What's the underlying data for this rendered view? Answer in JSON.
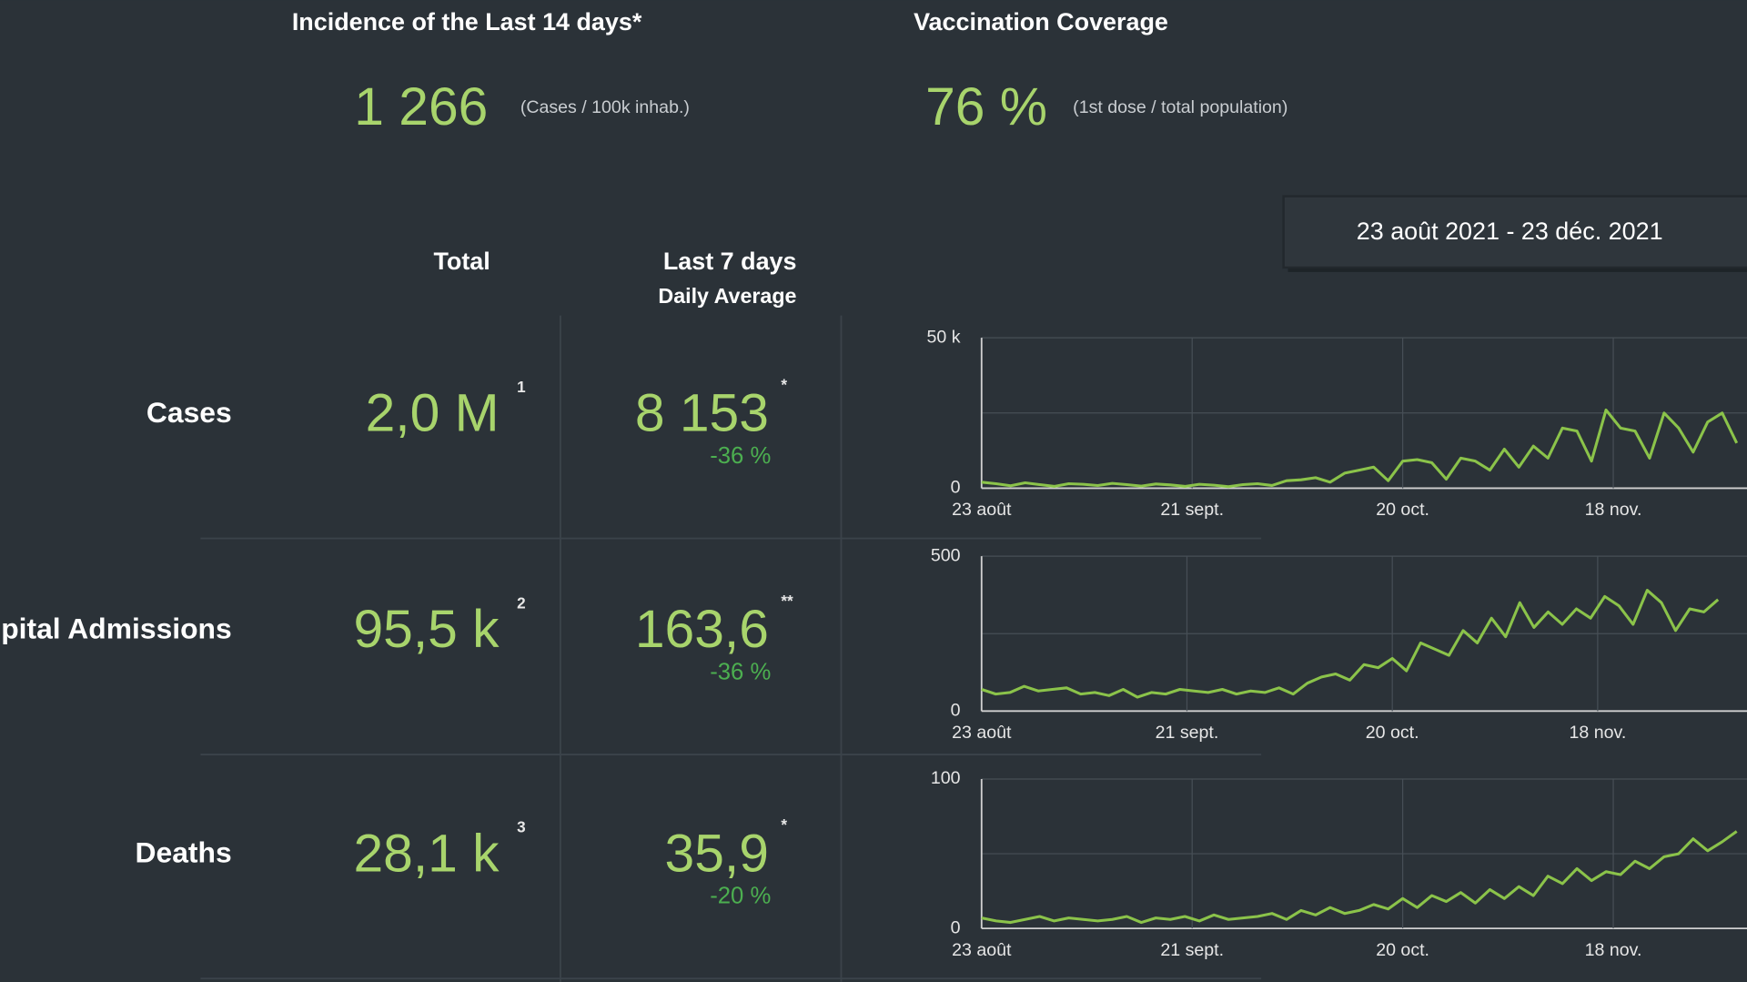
{
  "header": {
    "incidence_title": "Incidence of the Last 14 days*",
    "incidence_value": "1 266",
    "incidence_unit": "(Cases / 100k inhab.)",
    "vaccination_title": "Vaccination Coverage",
    "vaccination_value": "76 %",
    "vaccination_unit": "(1st dose / total population)"
  },
  "date_range": "23 août 2021 - 23 déc. 2021",
  "table": {
    "columns": [
      "Total",
      "Last 7 days",
      "Daily Average"
    ],
    "rows": [
      {
        "label": "Cases",
        "total": "2,0 M",
        "total_note": "1",
        "average": "8 153",
        "average_note": "*",
        "change": "-36 %"
      },
      {
        "label": "Hospital Admissions",
        "total": "95,5 k",
        "total_note": "2",
        "average": "163,6",
        "average_note": "**",
        "change": "-36 %"
      },
      {
        "label": "Deaths",
        "total": "28,1 k",
        "total_note": "3",
        "average": "35,9",
        "average_note": "*",
        "change": "-20 %"
      }
    ]
  },
  "chart_data": [
    {
      "type": "line",
      "color": "#8bc34a",
      "x": [
        0,
        2,
        4,
        6,
        8,
        10,
        12,
        14,
        16,
        18,
        20,
        22,
        24,
        26,
        28,
        30,
        32,
        34,
        36,
        38,
        40,
        42,
        44,
        46,
        48,
        50,
        52,
        54,
        56,
        58,
        60,
        62,
        64,
        66,
        68,
        70,
        72,
        74,
        76,
        78,
        80,
        82,
        84,
        86,
        88,
        90,
        92,
        94,
        96,
        98,
        100,
        102,
        104
      ],
      "values": [
        2000,
        1500,
        800,
        1800,
        1200,
        600,
        1500,
        1300,
        900,
        1600,
        1200,
        700,
        1400,
        1100,
        600,
        1300,
        1000,
        500,
        1200,
        1500,
        900,
        2500,
        2800,
        3500,
        2000,
        5000,
        6000,
        7000,
        2500,
        9000,
        9500,
        8500,
        3000,
        10000,
        9000,
        6000,
        13000,
        7000,
        14000,
        10000,
        20000,
        19000,
        9000,
        26000,
        20000,
        19000,
        10000,
        25000,
        20000,
        12000,
        22000,
        25000,
        15000
      ],
      "xlim": [
        0,
        122
      ],
      "xticks": [
        {
          "value": 0,
          "label": "23 août"
        },
        {
          "value": 29,
          "label": "21 sept."
        },
        {
          "value": 58,
          "label": "20 oct."
        },
        {
          "value": 87,
          "label": "18 nov."
        }
      ],
      "ylim": [
        0,
        50000
      ],
      "yticks": [
        0,
        {
          "value": 50000,
          "label": "50 k"
        }
      ],
      "ygrid": [
        25000
      ],
      "grid": true
    },
    {
      "type": "line",
      "color": "#8bc34a",
      "x": [
        0,
        2,
        4,
        6,
        8,
        10,
        12,
        14,
        16,
        18,
        20,
        22,
        24,
        26,
        28,
        30,
        32,
        34,
        36,
        38,
        40,
        42,
        44,
        46,
        48,
        50,
        52,
        54,
        56,
        58,
        60,
        62,
        64,
        66,
        68,
        70,
        72,
        74,
        76,
        78,
        80,
        82,
        84,
        86,
        88,
        90,
        92,
        94,
        96,
        98,
        100,
        102,
        104
      ],
      "values": [
        70,
        55,
        60,
        80,
        65,
        70,
        75,
        55,
        60,
        50,
        70,
        45,
        60,
        55,
        70,
        65,
        60,
        70,
        55,
        65,
        60,
        75,
        55,
        90,
        110,
        120,
        100,
        150,
        140,
        170,
        130,
        220,
        200,
        180,
        260,
        220,
        300,
        240,
        350,
        270,
        320,
        280,
        330,
        300,
        370,
        340,
        280,
        390,
        350,
        260,
        330,
        320,
        360
      ],
      "xlim": [
        0,
        122
      ],
      "xticks": [
        {
          "value": 0,
          "label": "23 août"
        },
        {
          "value": 29,
          "label": "21 sept."
        },
        {
          "value": 58,
          "label": "20 oct."
        },
        {
          "value": 87,
          "label": "18 nov."
        }
      ],
      "ylim": [
        0,
        500
      ],
      "yticks": [
        0,
        500
      ],
      "ygrid": [
        250
      ],
      "grid": true
    },
    {
      "type": "line",
      "color": "#8bc34a",
      "x": [
        0,
        2,
        4,
        6,
        8,
        10,
        12,
        14,
        16,
        18,
        20,
        22,
        24,
        26,
        28,
        30,
        32,
        34,
        36,
        38,
        40,
        42,
        44,
        46,
        48,
        50,
        52,
        54,
        56,
        58,
        60,
        62,
        64,
        66,
        68,
        70,
        72,
        74,
        76,
        78,
        80,
        82,
        84,
        86,
        88,
        90,
        92,
        94,
        96,
        98,
        100,
        102,
        104
      ],
      "values": [
        7,
        5,
        4,
        6,
        8,
        5,
        7,
        6,
        5,
        6,
        8,
        4,
        7,
        6,
        8,
        5,
        9,
        6,
        7,
        8,
        10,
        6,
        12,
        9,
        14,
        10,
        12,
        16,
        13,
        20,
        14,
        22,
        18,
        24,
        17,
        26,
        20,
        28,
        22,
        35,
        30,
        40,
        32,
        38,
        36,
        45,
        40,
        48,
        50,
        60,
        52,
        58,
        65
      ],
      "xlim": [
        0,
        122
      ],
      "xticks": [
        {
          "value": 0,
          "label": "23 août"
        },
        {
          "value": 29,
          "label": "21 sept."
        },
        {
          "value": 58,
          "label": "20 oct."
        },
        {
          "value": 87,
          "label": "18 nov."
        }
      ],
      "ylim": [
        0,
        100
      ],
      "yticks": [
        0,
        100
      ],
      "ygrid": [
        50
      ],
      "grid": true
    }
  ]
}
